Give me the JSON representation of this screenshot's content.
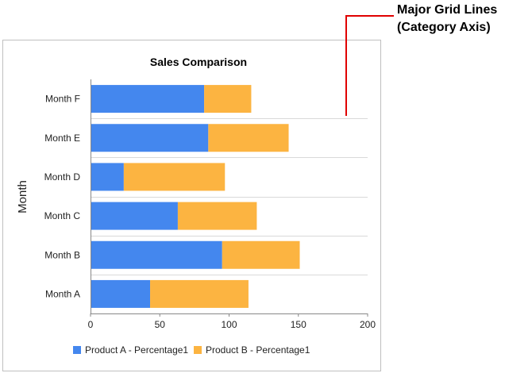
{
  "callout": {
    "line1": "Major Grid Lines",
    "line2": "(Category Axis)",
    "color": "#e00000"
  },
  "chart_data": {
    "type": "bar",
    "orientation": "horizontal",
    "stacked": true,
    "title": "Sales Comparison",
    "xlabel": "",
    "ylabel": "Month",
    "categories": [
      "Month A",
      "Month B",
      "Month C",
      "Month D",
      "Month E",
      "Month F"
    ],
    "series": [
      {
        "name": "Product A - Percentage1",
        "color": "#4487ee",
        "values": [
          43,
          95,
          63,
          24,
          85,
          82
        ]
      },
      {
        "name": "Product B - Percentage1",
        "color": "#fcb441",
        "values": [
          71,
          56,
          57,
          73,
          58,
          34
        ]
      }
    ],
    "xlim": [
      0,
      200
    ],
    "xticks": [
      "0",
      "50",
      "100",
      "150",
      "200"
    ],
    "grid": "category-axis major grid lines",
    "legend_position": "bottom-left"
  }
}
